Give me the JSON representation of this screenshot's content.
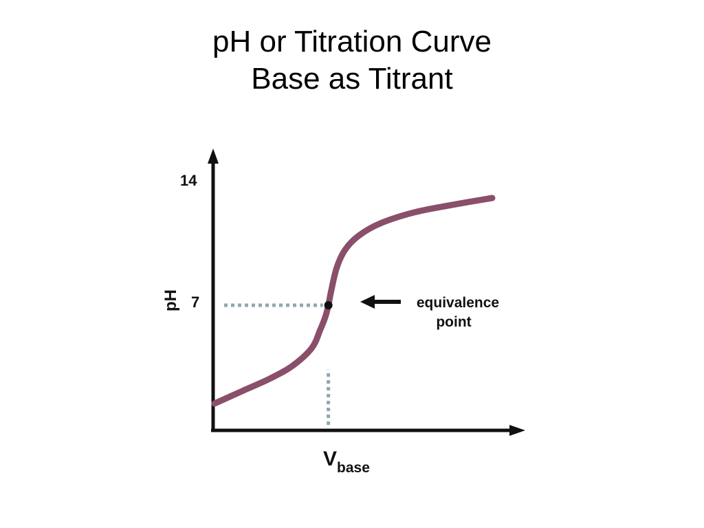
{
  "slide": {
    "title_line1": "pH or Titration Curve",
    "title_line2": "Base as Titrant"
  },
  "chart_data": {
    "type": "line",
    "ylabel": "pH",
    "xlabel_main": "V",
    "xlabel_subscript": "base",
    "y_ticks": [
      "14",
      "7"
    ],
    "ylim": [
      0,
      14
    ],
    "grid": false,
    "series": [
      {
        "color": "#8a4f6a",
        "points": [
          [
            0.0,
            1.5
          ],
          [
            0.1,
            2.2
          ],
          [
            0.2,
            2.9
          ],
          [
            0.28,
            3.6
          ],
          [
            0.35,
            4.6
          ],
          [
            0.38,
            5.6
          ],
          [
            0.4,
            6.4
          ],
          [
            0.41,
            7.0
          ],
          [
            0.42,
            7.8
          ],
          [
            0.44,
            9.1
          ],
          [
            0.47,
            10.1
          ],
          [
            0.52,
            10.9
          ],
          [
            0.6,
            11.6
          ],
          [
            0.72,
            12.2
          ],
          [
            0.85,
            12.6
          ],
          [
            1.0,
            13.0
          ]
        ]
      }
    ],
    "equivalence_point": {
      "x": 0.41,
      "y": 7,
      "label_line1": "equivalence",
      "label_line2": "point"
    },
    "reference_line_color": "#8fa9ad"
  }
}
